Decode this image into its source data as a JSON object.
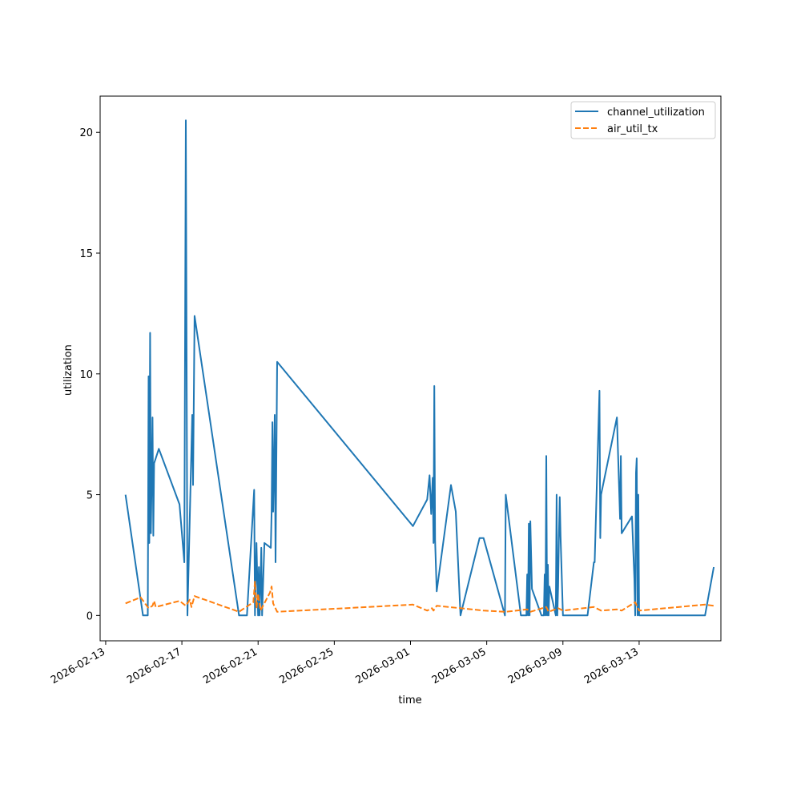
{
  "chart_data": {
    "type": "line",
    "xlabel": "time",
    "ylabel": "utilization",
    "x_scale": "date",
    "xlim": [
      "2026-02-12T17:00",
      "2026-03-17T07:00"
    ],
    "ylim": [
      -1.05,
      21.5
    ],
    "x_ticks": [
      "2026-02-13",
      "2026-02-17",
      "2026-02-21",
      "2026-02-25",
      "2026-03-01",
      "2026-03-05",
      "2026-03-09",
      "2026-03-13"
    ],
    "y_ticks": [
      0,
      5,
      10,
      15,
      20
    ],
    "grid": false,
    "legend_position": "top-right",
    "series": [
      {
        "name": "channel_utilization",
        "color": "#1f77b4",
        "line_style": "solid",
        "points": [
          [
            "2026-02-14T01:00",
            5.0
          ],
          [
            "2026-02-14T23:00",
            0.0
          ],
          [
            "2026-02-15T05:00",
            0.0
          ],
          [
            "2026-02-15T06:00",
            9.9
          ],
          [
            "2026-02-15T07:00",
            3.0
          ],
          [
            "2026-02-15T08:00",
            11.7
          ],
          [
            "2026-02-15T09:00",
            3.4
          ],
          [
            "2026-02-15T11:00",
            8.2
          ],
          [
            "2026-02-15T12:00",
            3.3
          ],
          [
            "2026-02-15T13:00",
            6.3
          ],
          [
            "2026-02-15T19:00",
            6.9
          ],
          [
            "2026-02-16T21:00",
            4.6
          ],
          [
            "2026-02-17T03:00",
            2.2
          ],
          [
            "2026-02-17T05:00",
            20.5
          ],
          [
            "2026-02-17T07:00",
            0.0
          ],
          [
            "2026-02-17T13:00",
            8.3
          ],
          [
            "2026-02-17T14:00",
            5.4
          ],
          [
            "2026-02-17T16:00",
            12.4
          ],
          [
            "2026-02-20T00:00",
            0.0
          ],
          [
            "2026-02-20T10:00",
            0.0
          ],
          [
            "2026-02-20T19:00",
            5.2
          ],
          [
            "2026-02-20T20:00",
            0.0
          ],
          [
            "2026-02-20T22:00",
            3.0
          ],
          [
            "2026-02-21T00:00",
            0.0
          ],
          [
            "2026-02-21T01:00",
            2.0
          ],
          [
            "2026-02-21T02:00",
            0.0
          ],
          [
            "2026-02-21T04:00",
            2.8
          ],
          [
            "2026-02-21T05:00",
            0.0
          ],
          [
            "2026-02-21T08:00",
            3.0
          ],
          [
            "2026-02-21T16:00",
            2.8
          ],
          [
            "2026-02-21T17:00",
            4.3
          ],
          [
            "2026-02-21T18:00",
            8.0
          ],
          [
            "2026-02-21T19:00",
            4.3
          ],
          [
            "2026-02-21T20:00",
            6.0
          ],
          [
            "2026-02-21T21:00",
            8.3
          ],
          [
            "2026-02-21T22:00",
            2.2
          ],
          [
            "2026-02-22T00:00",
            10.5
          ],
          [
            "2026-03-01T03:00",
            3.7
          ],
          [
            "2026-03-01T21:00",
            4.8
          ],
          [
            "2026-03-02T00:00",
            5.8
          ],
          [
            "2026-03-02T02:00",
            4.2
          ],
          [
            "2026-03-02T04:00",
            5.7
          ],
          [
            "2026-03-02T05:00",
            3.0
          ],
          [
            "2026-03-02T06:00",
            9.5
          ],
          [
            "2026-03-02T07:00",
            3.1
          ],
          [
            "2026-03-02T09:00",
            1.0
          ],
          [
            "2026-03-03T03:00",
            5.4
          ],
          [
            "2026-03-03T09:00",
            4.3
          ],
          [
            "2026-03-03T15:00",
            0.0
          ],
          [
            "2026-03-04T15:00",
            3.2
          ],
          [
            "2026-03-04T20:00",
            3.2
          ],
          [
            "2026-03-05T23:00",
            0.0
          ],
          [
            "2026-03-06T00:00",
            5.0
          ],
          [
            "2026-03-06T19:00",
            0.0
          ],
          [
            "2026-03-07T02:00",
            0.0
          ],
          [
            "2026-03-07T03:00",
            1.7
          ],
          [
            "2026-03-07T04:00",
            0.0
          ],
          [
            "2026-03-07T05:00",
            3.8
          ],
          [
            "2026-03-07T06:00",
            0.0
          ],
          [
            "2026-03-07T07:00",
            3.9
          ],
          [
            "2026-03-07T09:00",
            1.1
          ],
          [
            "2026-03-07T21:00",
            0.0
          ],
          [
            "2026-03-08T00:00",
            0.0
          ],
          [
            "2026-03-08T01:00",
            1.7
          ],
          [
            "2026-03-08T02:00",
            0.0
          ],
          [
            "2026-03-08T03:00",
            6.6
          ],
          [
            "2026-03-08T04:00",
            0.0
          ],
          [
            "2026-03-08T05:00",
            2.1
          ],
          [
            "2026-03-08T06:00",
            0.0
          ],
          [
            "2026-03-08T07:00",
            1.2
          ],
          [
            "2026-03-08T15:00",
            0.0
          ],
          [
            "2026-03-08T16:00",
            5.0
          ],
          [
            "2026-03-08T17:00",
            0.0
          ],
          [
            "2026-03-08T18:00",
            1.2
          ],
          [
            "2026-03-08T19:00",
            3.3
          ],
          [
            "2026-03-08T20:00",
            4.9
          ],
          [
            "2026-03-08T21:00",
            3.3
          ],
          [
            "2026-03-08T22:00",
            2.2
          ],
          [
            "2026-03-09T00:00",
            0.0
          ],
          [
            "2026-03-10T07:00",
            0.0
          ],
          [
            "2026-03-10T15:00",
            2.2
          ],
          [
            "2026-03-10T16:00",
            2.2
          ],
          [
            "2026-03-10T22:00",
            9.3
          ],
          [
            "2026-03-10T23:00",
            3.2
          ],
          [
            "2026-03-11T00:00",
            5.0
          ],
          [
            "2026-03-11T20:00",
            8.2
          ],
          [
            "2026-03-12T00:00",
            4.0
          ],
          [
            "2026-03-12T01:00",
            6.6
          ],
          [
            "2026-03-12T02:00",
            3.4
          ],
          [
            "2026-03-12T15:00",
            4.1
          ],
          [
            "2026-03-12T18:00",
            1.5
          ],
          [
            "2026-03-12T19:00",
            0.0
          ],
          [
            "2026-03-12T20:00",
            5.9
          ],
          [
            "2026-03-12T21:00",
            6.5
          ],
          [
            "2026-03-12T22:00",
            0.0
          ],
          [
            "2026-03-12T23:00",
            5.0
          ],
          [
            "2026-03-13T00:00",
            0.0
          ],
          [
            "2026-03-16T11:00",
            0.0
          ],
          [
            "2026-03-16T22:00",
            2.0
          ]
        ]
      },
      {
        "name": "air_util_tx",
        "color": "#ff7f0e",
        "line_style": "dashed",
        "points": [
          [
            "2026-02-14T01:00",
            0.5
          ],
          [
            "2026-02-14T20:00",
            0.75
          ],
          [
            "2026-02-15T06:00",
            0.3
          ],
          [
            "2026-02-15T11:00",
            0.4
          ],
          [
            "2026-02-15T13:00",
            0.6
          ],
          [
            "2026-02-15T15:00",
            0.35
          ],
          [
            "2026-02-16T21:00",
            0.6
          ],
          [
            "2026-02-17T05:00",
            0.4
          ],
          [
            "2026-02-17T10:00",
            0.65
          ],
          [
            "2026-02-17T12:00",
            0.35
          ],
          [
            "2026-02-17T16:00",
            0.8
          ],
          [
            "2026-02-20T00:00",
            0.15
          ],
          [
            "2026-02-20T18:00",
            0.55
          ],
          [
            "2026-02-20T20:00",
            1.4
          ],
          [
            "2026-02-20T22:00",
            0.3
          ],
          [
            "2026-02-21T00:00",
            0.9
          ],
          [
            "2026-02-21T03:00",
            0.2
          ],
          [
            "2026-02-21T15:00",
            0.95
          ],
          [
            "2026-02-21T17:00",
            1.2
          ],
          [
            "2026-02-21T19:00",
            0.5
          ],
          [
            "2026-02-22T00:00",
            0.15
          ],
          [
            "2026-03-01T03:00",
            0.45
          ],
          [
            "2026-03-01T21:00",
            0.2
          ],
          [
            "2026-03-02T03:00",
            0.3
          ],
          [
            "2026-03-02T05:00",
            0.2
          ],
          [
            "2026-03-02T09:00",
            0.4
          ],
          [
            "2026-03-03T15:00",
            0.3
          ],
          [
            "2026-03-04T20:00",
            0.2
          ],
          [
            "2026-03-06T00:00",
            0.15
          ],
          [
            "2026-03-07T03:00",
            0.25
          ],
          [
            "2026-03-07T07:00",
            0.15
          ],
          [
            "2026-03-08T03:00",
            0.35
          ],
          [
            "2026-03-08T06:00",
            0.15
          ],
          [
            "2026-03-08T18:00",
            0.3
          ],
          [
            "2026-03-09T00:00",
            0.2
          ],
          [
            "2026-03-10T15:00",
            0.35
          ],
          [
            "2026-03-11T00:00",
            0.2
          ],
          [
            "2026-03-11T20:00",
            0.25
          ],
          [
            "2026-03-12T02:00",
            0.2
          ],
          [
            "2026-03-12T19:00",
            0.55
          ],
          [
            "2026-03-13T00:00",
            0.2
          ],
          [
            "2026-03-16T11:00",
            0.45
          ],
          [
            "2026-03-16T22:00",
            0.4
          ]
        ]
      }
    ]
  }
}
